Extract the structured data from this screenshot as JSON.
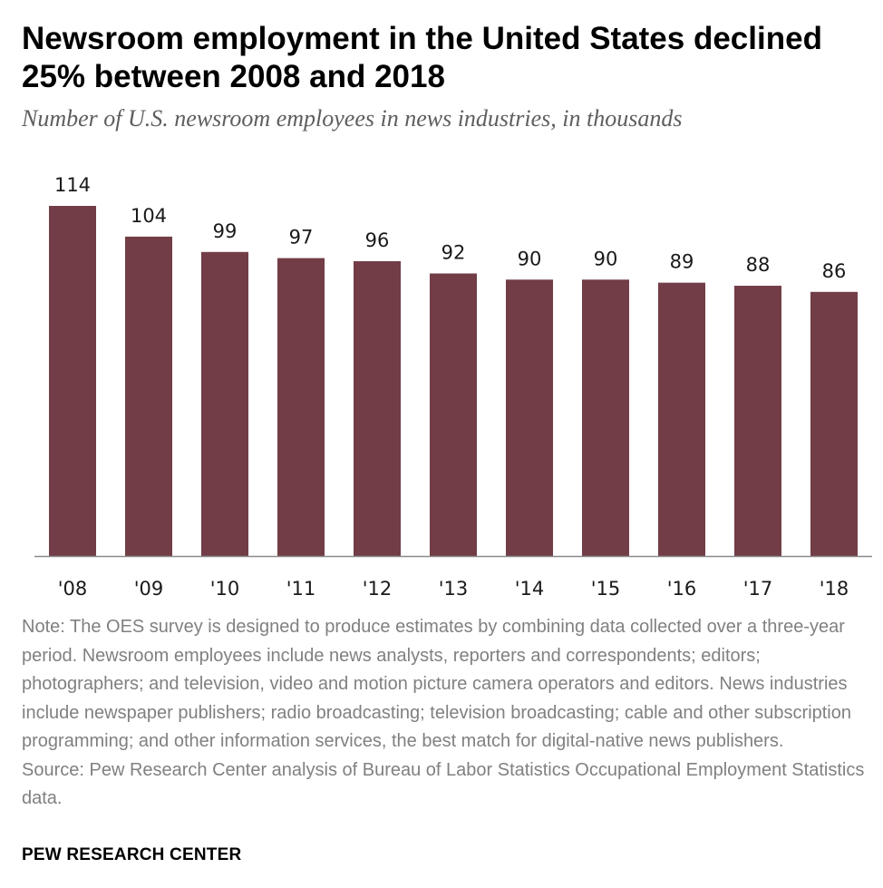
{
  "title": "Newsroom employment in the United States declined 25% between 2008 and 2018",
  "subtitle": "Number of U.S. newsroom employees in news industries, in thousands",
  "chart_data": {
    "type": "bar",
    "categories": [
      "'08",
      "'09",
      "'10",
      "'11",
      "'12",
      "'13",
      "'14",
      "'15",
      "'16",
      "'17",
      "'18"
    ],
    "values": [
      114,
      104,
      99,
      97,
      96,
      92,
      90,
      90,
      89,
      88,
      86
    ],
    "title": "Newsroom employment in the United States declined 25% between 2008 and 2018",
    "subtitle": "Number of U.S. newsroom employees in news industries, in thousands",
    "xlabel": "",
    "ylabel": "",
    "ylim": [
      0,
      114
    ],
    "grid": false,
    "data_labels": true,
    "bar_color": "#723d46",
    "axis_color": "#8a8a8a"
  },
  "note": "Note: The OES survey is designed to produce estimates by combining data collected over a three-year period. Newsroom employees include news analysts, reporters and correspondents; editors; photographers; and television, video and motion picture camera operators and editors. News industries include newspaper publishers; radio broadcasting; television broadcasting; cable and other subscription programming; and other information services, the best match for digital-native news publishers.",
  "source": "Source: Pew Research Center analysis of Bureau of Labor Statistics Occupational Employment Statistics data.",
  "brand": "PEW RESEARCH CENTER"
}
